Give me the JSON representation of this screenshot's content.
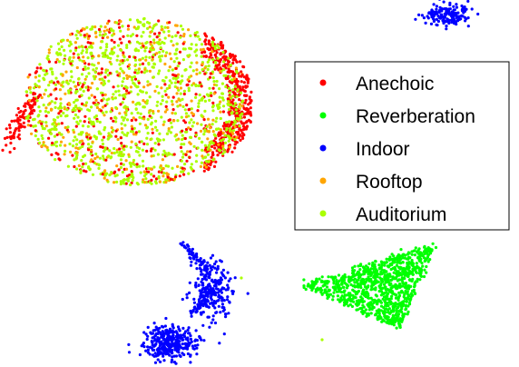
{
  "chart_data": {
    "type": "scatter",
    "title": "",
    "xlabel": "",
    "ylabel": "",
    "axes_visible": false,
    "grid": false,
    "legend_position": "right",
    "series": [
      {
        "name": "Anechoic",
        "color": "#ff0000",
        "approx_points": 700
      },
      {
        "name": "Reverberation",
        "color": "#00ff00",
        "approx_points": 900
      },
      {
        "name": "Indoor",
        "color": "#0000ff",
        "approx_points": 900
      },
      {
        "name": "Rooftop",
        "color": "#ffa500",
        "approx_points": 500
      },
      {
        "name": "Auditorium",
        "color": "#aaff00",
        "approx_points": 1700
      }
    ]
  }
}
